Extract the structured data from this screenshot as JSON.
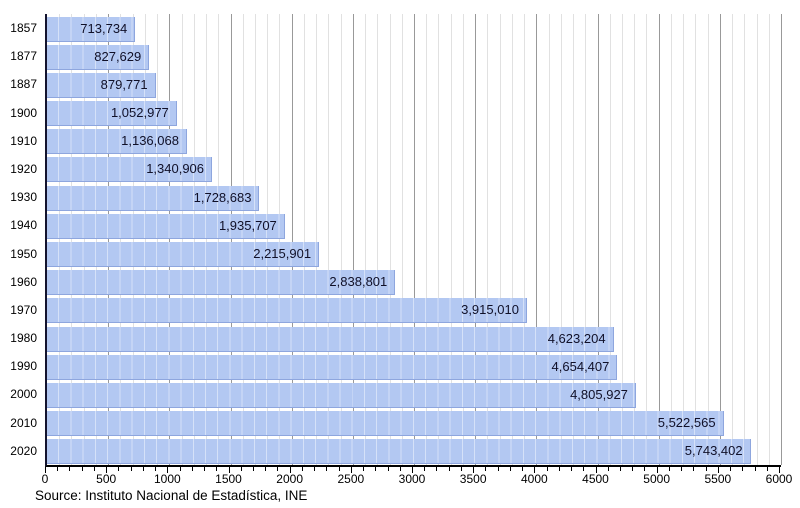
{
  "chart_data": {
    "type": "bar",
    "orientation": "horizontal",
    "title": "",
    "xlabel": "",
    "ylabel": "",
    "categories": [
      "1857",
      "1877",
      "1887",
      "1900",
      "1910",
      "1920",
      "1930",
      "1940",
      "1950",
      "1960",
      "1970",
      "1980",
      "1990",
      "2000",
      "2010",
      "2020"
    ],
    "values": [
      713734,
      827629,
      879771,
      1052977,
      1136068,
      1340906,
      1728683,
      1935707,
      2215901,
      2838801,
      3915010,
      4623204,
      4654407,
      4805927,
      5522565,
      5743402
    ],
    "value_labels": [
      "713,734",
      "827,629",
      "879,771",
      "1,052,977",
      "1,136,068",
      "1,340,906",
      "1,728,683",
      "1,935,707",
      "2,215,901",
      "2,838,801",
      "3,915,010",
      "4,623,204",
      "4,654,407",
      "4,805,927",
      "5,522,565",
      "5,743,402"
    ],
    "x_scale": 1000,
    "xlim": [
      0,
      6000
    ],
    "x_tick_step": 500,
    "x_minor_step": 100,
    "x_tick_labels": [
      "0",
      "500",
      "1000",
      "1500",
      "2000",
      "2500",
      "3000",
      "3500",
      "4000",
      "4500",
      "5000",
      "5500",
      "6000"
    ],
    "grid": true,
    "legend": false,
    "colors": {
      "bar_fill": "#b3c8f2",
      "bar_border": "#8ea6de",
      "grid_minor": "#e1e1e1",
      "grid_major": "#999999",
      "axis_y": "#14142e",
      "axis_x": "#000000",
      "label_text": "#101028"
    }
  },
  "source": "Source: Instituto Nacional de Estadística, INE"
}
